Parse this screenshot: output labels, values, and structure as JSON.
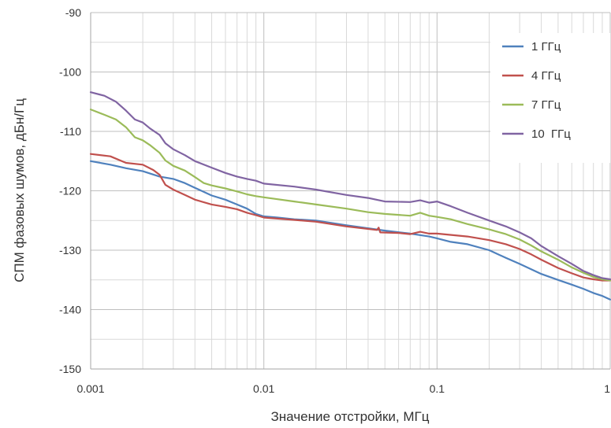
{
  "chart_data": {
    "type": "line",
    "title": "",
    "xlabel": "Значение отстройки, МГц",
    "ylabel": "СПМ фазовых шумов, дБн/Гц",
    "x_scale": "log",
    "xlim": [
      0.001,
      1
    ],
    "ylim": [
      -150,
      -90
    ],
    "x_ticks": [
      {
        "value": 0.001,
        "label": "0.001"
      },
      {
        "value": 0.01,
        "label": "0.01"
      },
      {
        "value": 0.1,
        "label": "0.1"
      },
      {
        "value": 1,
        "label": "1"
      }
    ],
    "y_ticks": [
      {
        "value": -90,
        "label": "-90"
      },
      {
        "value": -100,
        "label": "-100"
      },
      {
        "value": -110,
        "label": "-110"
      },
      {
        "value": -120,
        "label": "-120"
      },
      {
        "value": -130,
        "label": "-130"
      },
      {
        "value": -140,
        "label": "-140"
      },
      {
        "value": -150,
        "label": "-150"
      }
    ],
    "grid": true,
    "legend_position": "top-right",
    "series": [
      {
        "name": "1 ГГц",
        "color": "#4f81bd",
        "points": [
          [
            0.001,
            -115.0
          ],
          [
            0.0013,
            -115.6
          ],
          [
            0.0016,
            -116.2
          ],
          [
            0.002,
            -116.7
          ],
          [
            0.0025,
            -117.6
          ],
          [
            0.003,
            -118.0
          ],
          [
            0.0035,
            -118.7
          ],
          [
            0.004,
            -119.5
          ],
          [
            0.005,
            -120.8
          ],
          [
            0.006,
            -121.5
          ],
          [
            0.007,
            -122.3
          ],
          [
            0.008,
            -123.0
          ],
          [
            0.009,
            -123.9
          ],
          [
            0.01,
            -124.3
          ],
          [
            0.012,
            -124.5
          ],
          [
            0.015,
            -124.8
          ],
          [
            0.02,
            -125.0
          ],
          [
            0.03,
            -125.8
          ],
          [
            0.05,
            -126.7
          ],
          [
            0.07,
            -127.2
          ],
          [
            0.09,
            -127.7
          ],
          [
            0.1,
            -128.0
          ],
          [
            0.12,
            -128.6
          ],
          [
            0.15,
            -129.0
          ],
          [
            0.2,
            -130.0
          ],
          [
            0.25,
            -131.3
          ],
          [
            0.3,
            -132.3
          ],
          [
            0.35,
            -133.2
          ],
          [
            0.4,
            -134.0
          ],
          [
            0.5,
            -135.0
          ],
          [
            0.6,
            -135.8
          ],
          [
            0.7,
            -136.5
          ],
          [
            0.8,
            -137.2
          ],
          [
            0.9,
            -137.7
          ],
          [
            1.0,
            -138.3
          ]
        ]
      },
      {
        "name": "4 ГГц",
        "color": "#c0504d",
        "points": [
          [
            0.001,
            -113.8
          ],
          [
            0.0013,
            -114.2
          ],
          [
            0.0016,
            -115.3
          ],
          [
            0.002,
            -115.6
          ],
          [
            0.0023,
            -116.5
          ],
          [
            0.0025,
            -117.3
          ],
          [
            0.0027,
            -119.0
          ],
          [
            0.003,
            -119.8
          ],
          [
            0.0035,
            -120.7
          ],
          [
            0.004,
            -121.5
          ],
          [
            0.005,
            -122.3
          ],
          [
            0.006,
            -122.7
          ],
          [
            0.007,
            -123.1
          ],
          [
            0.008,
            -123.7
          ],
          [
            0.009,
            -124.1
          ],
          [
            0.01,
            -124.5
          ],
          [
            0.015,
            -124.9
          ],
          [
            0.02,
            -125.2
          ],
          [
            0.03,
            -126.0
          ],
          [
            0.045,
            -126.6
          ],
          [
            0.046,
            -126.2
          ],
          [
            0.047,
            -127.0
          ],
          [
            0.06,
            -127.1
          ],
          [
            0.07,
            -127.3
          ],
          [
            0.08,
            -126.9
          ],
          [
            0.09,
            -127.2
          ],
          [
            0.1,
            -127.2
          ],
          [
            0.15,
            -127.7
          ],
          [
            0.2,
            -128.3
          ],
          [
            0.25,
            -129.0
          ],
          [
            0.3,
            -129.8
          ],
          [
            0.35,
            -130.7
          ],
          [
            0.4,
            -131.6
          ],
          [
            0.5,
            -133.0
          ],
          [
            0.6,
            -133.9
          ],
          [
            0.7,
            -134.6
          ],
          [
            0.8,
            -134.9
          ],
          [
            0.9,
            -135.1
          ],
          [
            1.0,
            -135.1
          ]
        ]
      },
      {
        "name": "7 ГГц",
        "color": "#9bbb59",
        "points": [
          [
            0.001,
            -106.3
          ],
          [
            0.0012,
            -107.2
          ],
          [
            0.0014,
            -108.0
          ],
          [
            0.0016,
            -109.3
          ],
          [
            0.0018,
            -111.0
          ],
          [
            0.002,
            -111.5
          ],
          [
            0.0022,
            -112.3
          ],
          [
            0.0025,
            -113.6
          ],
          [
            0.0027,
            -114.9
          ],
          [
            0.003,
            -115.8
          ],
          [
            0.0035,
            -116.6
          ],
          [
            0.004,
            -117.7
          ],
          [
            0.0045,
            -118.7
          ],
          [
            0.005,
            -119.1
          ],
          [
            0.006,
            -119.6
          ],
          [
            0.007,
            -120.1
          ],
          [
            0.008,
            -120.6
          ],
          [
            0.009,
            -120.9
          ],
          [
            0.01,
            -121.1
          ],
          [
            0.015,
            -121.8
          ],
          [
            0.02,
            -122.3
          ],
          [
            0.03,
            -123.0
          ],
          [
            0.04,
            -123.6
          ],
          [
            0.05,
            -123.9
          ],
          [
            0.07,
            -124.2
          ],
          [
            0.08,
            -123.7
          ],
          [
            0.09,
            -124.2
          ],
          [
            0.1,
            -124.4
          ],
          [
            0.12,
            -124.8
          ],
          [
            0.15,
            -125.6
          ],
          [
            0.2,
            -126.5
          ],
          [
            0.25,
            -127.3
          ],
          [
            0.3,
            -128.2
          ],
          [
            0.35,
            -129.2
          ],
          [
            0.4,
            -130.2
          ],
          [
            0.5,
            -131.6
          ],
          [
            0.6,
            -132.9
          ],
          [
            0.7,
            -133.8
          ],
          [
            0.8,
            -134.5
          ],
          [
            0.9,
            -134.9
          ],
          [
            1.0,
            -135.1
          ]
        ]
      },
      {
        "name": "10  ГГц",
        "color": "#8064a2",
        "points": [
          [
            0.001,
            -103.4
          ],
          [
            0.0012,
            -104.0
          ],
          [
            0.0014,
            -105.0
          ],
          [
            0.0016,
            -106.5
          ],
          [
            0.0018,
            -108.0
          ],
          [
            0.002,
            -108.5
          ],
          [
            0.0022,
            -109.5
          ],
          [
            0.0025,
            -110.6
          ],
          [
            0.0027,
            -112.0
          ],
          [
            0.003,
            -113.0
          ],
          [
            0.0035,
            -114.0
          ],
          [
            0.004,
            -115.0
          ],
          [
            0.005,
            -116.1
          ],
          [
            0.006,
            -117.0
          ],
          [
            0.007,
            -117.6
          ],
          [
            0.008,
            -118.0
          ],
          [
            0.009,
            -118.3
          ],
          [
            0.01,
            -118.8
          ],
          [
            0.015,
            -119.3
          ],
          [
            0.02,
            -119.8
          ],
          [
            0.03,
            -120.7
          ],
          [
            0.04,
            -121.2
          ],
          [
            0.05,
            -121.8
          ],
          [
            0.07,
            -121.9
          ],
          [
            0.08,
            -121.6
          ],
          [
            0.09,
            -122.0
          ],
          [
            0.1,
            -121.8
          ],
          [
            0.12,
            -122.6
          ],
          [
            0.15,
            -123.7
          ],
          [
            0.2,
            -125.0
          ],
          [
            0.25,
            -126.0
          ],
          [
            0.3,
            -127.0
          ],
          [
            0.35,
            -128.0
          ],
          [
            0.4,
            -129.3
          ],
          [
            0.5,
            -131.0
          ],
          [
            0.6,
            -132.3
          ],
          [
            0.7,
            -133.5
          ],
          [
            0.8,
            -134.2
          ],
          [
            0.9,
            -134.7
          ],
          [
            1.0,
            -134.9
          ]
        ]
      }
    ]
  }
}
